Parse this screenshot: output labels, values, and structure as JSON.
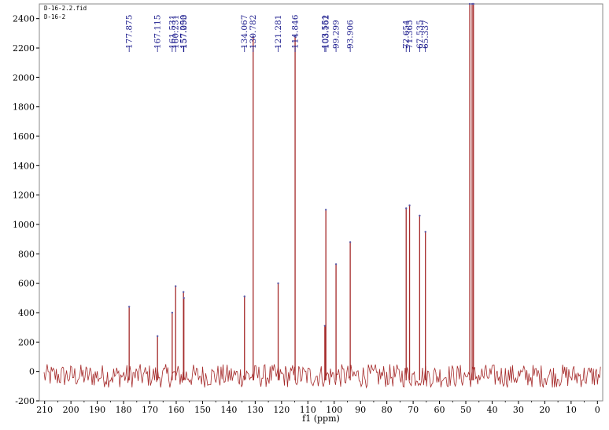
{
  "header": {
    "file_name": "D-16-2.2.fid",
    "sample_name": "D-16-2"
  },
  "chart_data": {
    "type": "line",
    "title": "",
    "xlabel": "f1 (ppm)",
    "ylabel": "",
    "xlim": [
      212,
      -2
    ],
    "ylim": [
      -200,
      2500
    ],
    "x_reversed": true,
    "x_ticks": [
      210,
      200,
      190,
      180,
      170,
      160,
      150,
      140,
      130,
      120,
      110,
      100,
      90,
      80,
      70,
      60,
      50,
      40,
      30,
      20,
      10,
      0
    ],
    "y_ticks": [
      -200,
      0,
      200,
      400,
      600,
      800,
      1000,
      1200,
      1400,
      1600,
      1800,
      2000,
      2200,
      2400
    ],
    "series_color": "#a52a2a",
    "peak_label_color": "#1a1a8c",
    "noise": {
      "amplitude": 80,
      "baseline": -30
    },
    "peaks": [
      {
        "ppm": 177.875,
        "intensity": 440
      },
      {
        "ppm": 167.115,
        "intensity": 240
      },
      {
        "ppm": 161.531,
        "intensity": 400
      },
      {
        "ppm": 160.231,
        "intensity": 580
      },
      {
        "ppm": 157.25,
        "intensity": 540
      },
      {
        "ppm": 157.093,
        "intensity": 500
      },
      {
        "ppm": 134.067,
        "intensity": 510
      },
      {
        "ppm": 130.782,
        "intensity": 2280
      },
      {
        "ppm": 121.281,
        "intensity": 600
      },
      {
        "ppm": 114.846,
        "intensity": 2280
      },
      {
        "ppm": 103.551,
        "intensity": 310
      },
      {
        "ppm": 103.162,
        "intensity": 1100
      },
      {
        "ppm": 99.299,
        "intensity": 730
      },
      {
        "ppm": 93.906,
        "intensity": 880
      },
      {
        "ppm": 72.654,
        "intensity": 1110
      },
      {
        "ppm": 71.365,
        "intensity": 1130
      },
      {
        "ppm": 67.535,
        "intensity": 1060
      },
      {
        "ppm": 65.337,
        "intensity": 950
      },
      {
        "ppm": 48.5,
        "intensity": 2500
      },
      {
        "ppm": 47.6,
        "intensity": 2500
      },
      {
        "ppm": 47.1,
        "intensity": 2500
      }
    ],
    "peak_labels": [
      "177.875",
      "167.115",
      "161.531",
      "160.231",
      "157.250",
      "157.093",
      "134.067",
      "130.782",
      "121.281",
      "114.846",
      "103.551",
      "103.162",
      "99.299",
      "93.906",
      "72.654",
      "71.365",
      "67.535",
      "65.337"
    ]
  }
}
